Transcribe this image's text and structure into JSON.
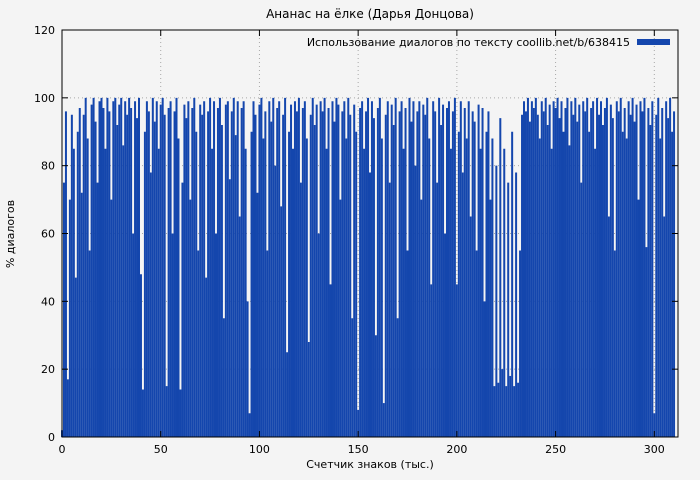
{
  "chart_data": {
    "type": "bar",
    "title": "Ананас на ёлке (Дарья Донцова)",
    "legend": "Использование диалогов по тексту coollib.net/b/638415",
    "xlabel": "Счетчик знаков (тыс.)",
    "ylabel": "% диалогов",
    "xlim": [
      0,
      312
    ],
    "ylim": [
      0,
      120
    ],
    "xticks": [
      0,
      50,
      100,
      150,
      200,
      250,
      300
    ],
    "yticks": [
      0,
      20,
      40,
      60,
      80,
      100,
      120
    ],
    "grid": "dotted",
    "legend_position": "top-right",
    "bar_color": "#1446ad",
    "x_start": 0,
    "x_step": 1,
    "values": [
      2,
      75,
      96,
      17,
      70,
      95,
      85,
      47,
      90,
      97,
      72,
      95,
      100,
      88,
      55,
      98,
      100,
      93,
      75,
      99,
      100,
      97,
      85,
      100,
      96,
      70,
      99,
      100,
      92,
      98,
      100,
      86,
      99,
      95,
      100,
      97,
      60,
      99,
      94,
      100,
      48,
      14,
      90,
      99,
      96,
      78,
      100,
      93,
      99,
      85,
      98,
      100,
      95,
      15,
      97,
      99,
      60,
      96,
      100,
      88,
      14,
      75,
      98,
      94,
      99,
      70,
      97,
      100,
      90,
      55,
      98,
      95,
      99,
      47,
      96,
      100,
      85,
      99,
      60,
      97,
      100,
      92,
      35,
      98,
      99,
      76,
      96,
      100,
      89,
      99,
      65,
      97,
      99,
      85,
      40,
      7,
      90,
      99,
      95,
      72,
      98,
      100,
      88,
      96,
      55,
      99,
      93,
      100,
      80,
      97,
      99,
      68,
      95,
      100,
      25,
      90,
      98,
      85,
      99,
      96,
      100,
      75,
      97,
      99,
      88,
      28,
      95,
      100,
      92,
      98,
      60,
      99,
      96,
      100,
      85,
      97,
      45,
      99,
      93,
      100,
      98,
      70,
      96,
      99,
      88,
      100,
      95,
      35,
      98,
      90,
      8,
      97,
      99,
      85,
      96,
      100,
      78,
      99,
      94,
      30,
      97,
      100,
      88,
      10,
      95,
      99,
      75,
      98,
      92,
      100,
      35,
      96,
      99,
      85,
      97,
      55,
      100,
      93,
      99,
      80,
      96,
      99,
      70,
      98,
      95,
      100,
      88,
      45,
      99,
      96,
      75,
      100,
      92,
      98,
      60,
      97,
      99,
      85,
      96,
      100,
      45,
      90,
      99,
      78,
      97,
      88,
      99,
      65,
      96,
      93,
      55,
      98,
      85,
      97,
      40,
      90,
      96,
      70,
      88,
      15,
      80,
      16,
      94,
      20,
      85,
      15,
      75,
      18,
      90,
      15,
      78,
      16,
      55,
      95,
      99,
      96,
      100,
      93,
      99,
      97,
      100,
      95,
      88,
      99,
      96,
      100,
      92,
      98,
      85,
      99,
      97,
      100,
      94,
      99,
      90,
      97,
      100,
      86,
      99,
      95,
      100,
      93,
      98,
      75,
      99,
      96,
      100,
      90,
      97,
      99,
      85,
      100,
      95,
      99,
      92,
      97,
      100,
      65,
      98,
      94,
      55,
      99,
      96,
      100,
      90,
      97,
      88,
      99,
      95,
      100,
      93,
      98,
      70,
      99,
      96,
      100,
      56,
      97,
      92,
      99,
      7,
      95,
      100,
      88,
      97,
      65,
      99,
      94,
      100,
      90,
      96
    ]
  }
}
